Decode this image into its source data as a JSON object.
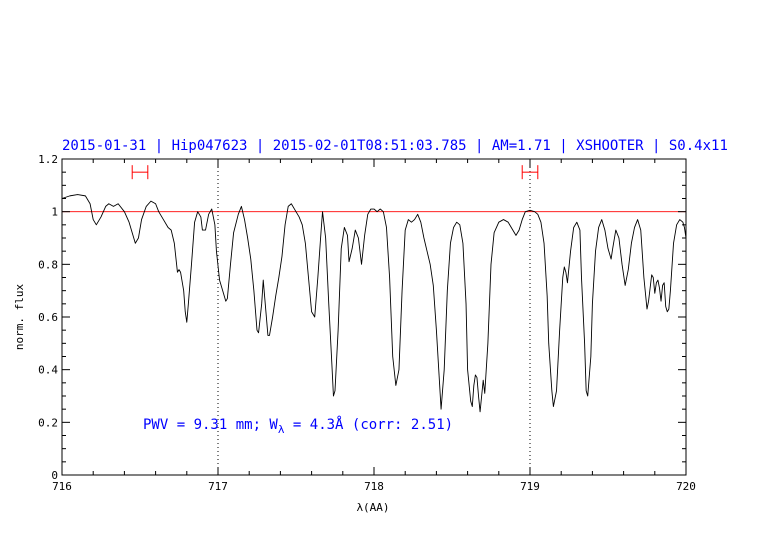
{
  "chart_data": {
    "type": "line",
    "title": "2015-01-31 | Hip047623 | 2015-02-01T08:51:03.785 | AM=1.71 | XSHOOTER | S0.4x11",
    "xlabel": "λ(AA)",
    "ylabel": "norm. flux",
    "xlim": [
      716,
      720
    ],
    "ylim": [
      0,
      1.2
    ],
    "x_ticks": [
      "716",
      "717",
      "718",
      "719",
      "720"
    ],
    "y_ticks": [
      "0",
      "0.2",
      "0.4",
      "0.6",
      "0.8",
      "1",
      "1.2"
    ],
    "reference_line": {
      "y": 1.0,
      "color": "#ff0000"
    },
    "vertical_markers": [
      717.0,
      719.0
    ],
    "range_markers": [
      {
        "x_start": 716.45,
        "x_end": 716.55,
        "y": 1.15
      },
      {
        "x_start": 718.95,
        "x_end": 719.05,
        "y": 1.15
      }
    ],
    "annotation": {
      "prefix": "PWV = 9.31 mm; W",
      "subscript": "λ",
      "suffix": " = 4.3Å (corr: 2.51)"
    },
    "series": [
      {
        "color": "#000000",
        "points": [
          [
            716.0,
            1.05
          ],
          [
            716.05,
            1.06
          ],
          [
            716.1,
            1.065
          ],
          [
            716.15,
            1.06
          ],
          [
            716.18,
            1.03
          ],
          [
            716.2,
            0.97
          ],
          [
            716.22,
            0.95
          ],
          [
            716.25,
            0.98
          ],
          [
            716.28,
            1.02
          ],
          [
            716.3,
            1.03
          ],
          [
            716.33,
            1.02
          ],
          [
            716.36,
            1.03
          ],
          [
            716.4,
            1.0
          ],
          [
            716.43,
            0.96
          ],
          [
            716.45,
            0.92
          ],
          [
            716.47,
            0.88
          ],
          [
            716.49,
            0.9
          ],
          [
            716.51,
            0.97
          ],
          [
            716.54,
            1.02
          ],
          [
            716.57,
            1.04
          ],
          [
            716.6,
            1.03
          ],
          [
            716.62,
            1.0
          ],
          [
            716.65,
            0.97
          ],
          [
            716.68,
            0.94
          ],
          [
            716.7,
            0.93
          ],
          [
            716.72,
            0.88
          ],
          [
            716.74,
            0.77
          ],
          [
            716.75,
            0.78
          ],
          [
            716.76,
            0.77
          ],
          [
            716.78,
            0.7
          ],
          [
            716.79,
            0.62
          ],
          [
            716.8,
            0.58
          ],
          [
            716.81,
            0.65
          ],
          [
            716.83,
            0.8
          ],
          [
            716.85,
            0.96
          ],
          [
            716.87,
            1.0
          ],
          [
            716.89,
            0.98
          ],
          [
            716.9,
            0.93
          ],
          [
            716.92,
            0.93
          ],
          [
            716.94,
            0.99
          ],
          [
            716.96,
            1.01
          ],
          [
            716.98,
            0.95
          ],
          [
            716.99,
            0.85
          ],
          [
            717.01,
            0.74
          ],
          [
            717.03,
            0.7
          ],
          [
            717.05,
            0.66
          ],
          [
            717.06,
            0.67
          ],
          [
            717.08,
            0.8
          ],
          [
            717.1,
            0.92
          ],
          [
            717.13,
            0.99
          ],
          [
            717.15,
            1.02
          ],
          [
            717.17,
            0.97
          ],
          [
            717.19,
            0.9
          ],
          [
            717.21,
            0.82
          ],
          [
            717.23,
            0.7
          ],
          [
            717.25,
            0.55
          ],
          [
            717.26,
            0.54
          ],
          [
            717.28,
            0.65
          ],
          [
            717.29,
            0.74
          ],
          [
            717.3,
            0.67
          ],
          [
            717.32,
            0.53
          ],
          [
            717.33,
            0.53
          ],
          [
            717.35,
            0.6
          ],
          [
            717.37,
            0.68
          ],
          [
            717.39,
            0.75
          ],
          [
            717.41,
            0.83
          ],
          [
            717.43,
            0.95
          ],
          [
            717.45,
            1.02
          ],
          [
            717.47,
            1.03
          ],
          [
            717.5,
            1.0
          ],
          [
            717.52,
            0.98
          ],
          [
            717.54,
            0.95
          ],
          [
            717.56,
            0.88
          ],
          [
            717.58,
            0.75
          ],
          [
            717.6,
            0.62
          ],
          [
            717.62,
            0.6
          ],
          [
            717.64,
            0.75
          ],
          [
            717.66,
            0.92
          ],
          [
            717.67,
            1.0
          ],
          [
            717.69,
            0.9
          ],
          [
            717.71,
            0.65
          ],
          [
            717.73,
            0.42
          ],
          [
            717.74,
            0.3
          ],
          [
            717.75,
            0.32
          ],
          [
            717.77,
            0.55
          ],
          [
            717.79,
            0.86
          ],
          [
            717.81,
            0.94
          ],
          [
            717.83,
            0.91
          ],
          [
            717.84,
            0.81
          ],
          [
            717.86,
            0.86
          ],
          [
            717.88,
            0.93
          ],
          [
            717.9,
            0.9
          ],
          [
            717.92,
            0.8
          ],
          [
            717.94,
            0.91
          ],
          [
            717.96,
            0.99
          ],
          [
            717.98,
            1.01
          ],
          [
            718.0,
            1.01
          ],
          [
            718.02,
            1.0
          ],
          [
            718.04,
            1.01
          ],
          [
            718.06,
            1.0
          ],
          [
            718.08,
            0.94
          ],
          [
            718.1,
            0.75
          ],
          [
            718.12,
            0.45
          ],
          [
            718.14,
            0.34
          ],
          [
            718.16,
            0.4
          ],
          [
            718.18,
            0.7
          ],
          [
            718.2,
            0.93
          ],
          [
            718.22,
            0.97
          ],
          [
            718.24,
            0.96
          ],
          [
            718.26,
            0.97
          ],
          [
            718.28,
            0.99
          ],
          [
            718.3,
            0.96
          ],
          [
            718.32,
            0.9
          ],
          [
            718.34,
            0.85
          ],
          [
            718.36,
            0.8
          ],
          [
            718.38,
            0.72
          ],
          [
            718.4,
            0.55
          ],
          [
            718.42,
            0.35
          ],
          [
            718.43,
            0.25
          ],
          [
            718.45,
            0.4
          ],
          [
            718.47,
            0.7
          ],
          [
            718.49,
            0.88
          ],
          [
            718.51,
            0.94
          ],
          [
            718.53,
            0.96
          ],
          [
            718.55,
            0.95
          ],
          [
            718.57,
            0.88
          ],
          [
            718.59,
            0.65
          ],
          [
            718.6,
            0.4
          ],
          [
            718.62,
            0.28
          ],
          [
            718.63,
            0.26
          ],
          [
            718.64,
            0.34
          ],
          [
            718.65,
            0.38
          ],
          [
            718.66,
            0.37
          ],
          [
            718.67,
            0.3
          ],
          [
            718.68,
            0.24
          ],
          [
            718.69,
            0.3
          ],
          [
            718.7,
            0.36
          ],
          [
            718.71,
            0.31
          ],
          [
            718.73,
            0.5
          ],
          [
            718.75,
            0.8
          ],
          [
            718.77,
            0.92
          ],
          [
            718.8,
            0.96
          ],
          [
            718.83,
            0.97
          ],
          [
            718.86,
            0.96
          ],
          [
            718.89,
            0.93
          ],
          [
            718.91,
            0.91
          ],
          [
            718.93,
            0.93
          ],
          [
            718.95,
            0.97
          ],
          [
            718.97,
            1.0
          ],
          [
            719.0,
            1.005
          ],
          [
            719.03,
            1.0
          ],
          [
            719.05,
            0.99
          ],
          [
            719.07,
            0.96
          ],
          [
            719.09,
            0.88
          ],
          [
            719.11,
            0.68
          ],
          [
            719.12,
            0.5
          ],
          [
            719.14,
            0.32
          ],
          [
            719.15,
            0.26
          ],
          [
            719.17,
            0.32
          ],
          [
            719.19,
            0.55
          ],
          [
            719.21,
            0.75
          ],
          [
            719.22,
            0.79
          ],
          [
            719.23,
            0.77
          ],
          [
            719.24,
            0.73
          ],
          [
            719.26,
            0.85
          ],
          [
            719.28,
            0.94
          ],
          [
            719.3,
            0.96
          ],
          [
            719.32,
            0.93
          ],
          [
            719.33,
            0.75
          ],
          [
            719.35,
            0.5
          ],
          [
            719.36,
            0.32
          ],
          [
            719.37,
            0.3
          ],
          [
            719.39,
            0.45
          ],
          [
            719.4,
            0.65
          ],
          [
            719.42,
            0.85
          ],
          [
            719.44,
            0.94
          ],
          [
            719.46,
            0.97
          ],
          [
            719.48,
            0.93
          ],
          [
            719.5,
            0.86
          ],
          [
            719.52,
            0.82
          ],
          [
            719.53,
            0.86
          ],
          [
            719.55,
            0.93
          ],
          [
            719.57,
            0.9
          ],
          [
            719.59,
            0.8
          ],
          [
            719.61,
            0.72
          ],
          [
            719.63,
            0.78
          ],
          [
            719.65,
            0.88
          ],
          [
            719.67,
            0.94
          ],
          [
            719.69,
            0.97
          ],
          [
            719.71,
            0.93
          ],
          [
            719.73,
            0.75
          ],
          [
            719.75,
            0.63
          ],
          [
            719.76,
            0.66
          ],
          [
            719.78,
            0.76
          ],
          [
            719.79,
            0.75
          ],
          [
            719.8,
            0.69
          ],
          [
            719.81,
            0.73
          ],
          [
            719.82,
            0.74
          ],
          [
            719.83,
            0.71
          ],
          [
            719.84,
            0.66
          ],
          [
            719.85,
            0.72
          ],
          [
            719.86,
            0.73
          ],
          [
            719.87,
            0.64
          ],
          [
            719.88,
            0.62
          ],
          [
            719.89,
            0.63
          ],
          [
            719.9,
            0.7
          ],
          [
            719.92,
            0.88
          ],
          [
            719.94,
            0.95
          ],
          [
            719.96,
            0.97
          ],
          [
            719.98,
            0.96
          ],
          [
            719.99,
            0.94
          ],
          [
            720.0,
            0.9
          ]
        ]
      }
    ]
  }
}
